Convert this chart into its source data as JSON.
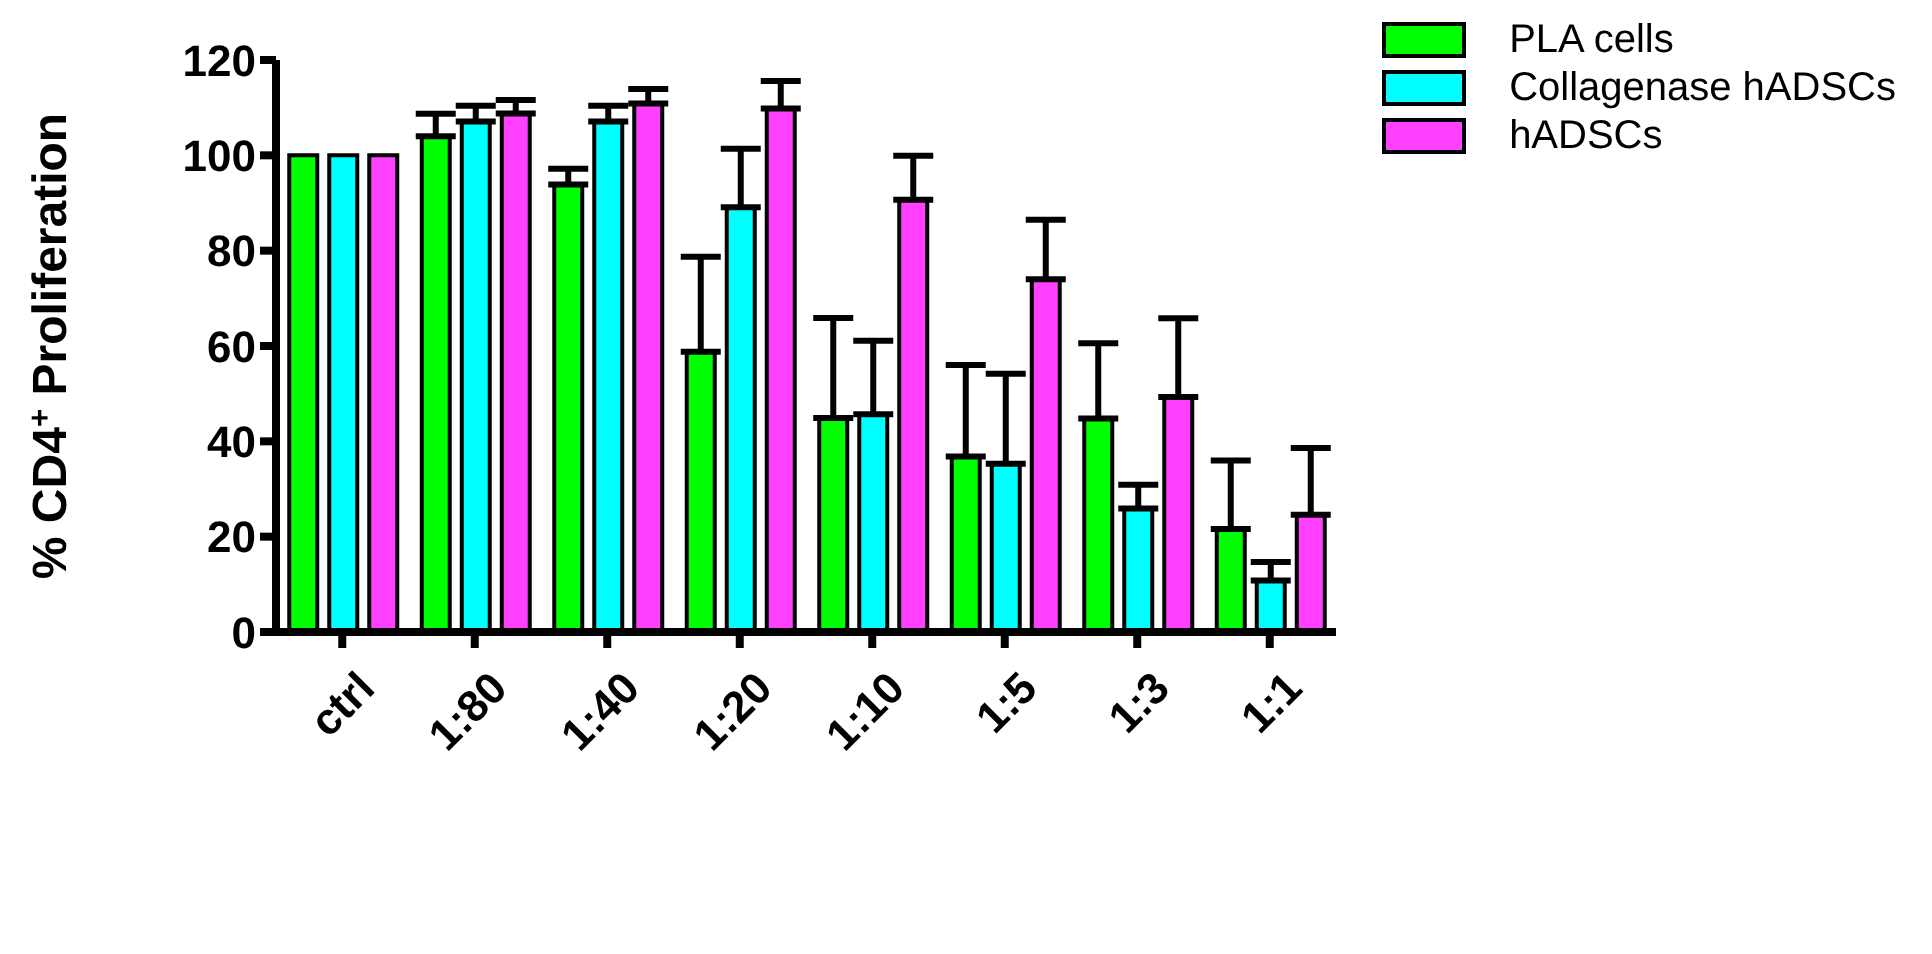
{
  "chart_data": {
    "type": "bar",
    "ylabel": "% CD4$^{+}$ Proliferation",
    "categories": [
      "ctrl",
      "1:80",
      "1:40",
      "1:20",
      "1:10",
      "1:5",
      "1:3",
      "1:1"
    ],
    "series": [
      {
        "name": "PLA cells",
        "color": "#00ff00",
        "values": [
          100,
          104,
          93.9,
          58.8,
          44.9,
          36.8,
          44.8,
          21.6
        ],
        "errors": [
          null,
          [
            104,
            108.7
          ],
          [
            93.9,
            97.2
          ],
          [
            58.8,
            78.7
          ],
          [
            44.9,
            65.9
          ],
          [
            36.8,
            56
          ],
          [
            44.8,
            60.6
          ],
          [
            21.6,
            36
          ]
        ]
      },
      {
        "name": "Collagenase hADSCs",
        "color": "#00ffff",
        "values": [
          100,
          107.1,
          107.1,
          89.1,
          45.7,
          35.3,
          25.9,
          10.8
        ],
        "errors": [
          null,
          [
            107.1,
            110.4
          ],
          [
            107.1,
            110.4
          ],
          [
            89.1,
            101.4
          ],
          [
            45.7,
            61.1
          ],
          [
            35.3,
            54.2
          ],
          [
            25.9,
            30.9
          ],
          [
            10.8,
            14.7
          ]
        ]
      },
      {
        "name": "hADSCs",
        "color": "#ff40ff",
        "values": [
          100,
          108.8,
          110.9,
          109.8,
          90.7,
          74,
          49.3,
          24.6
        ],
        "errors": [
          null,
          [
            108.8,
            111.6
          ],
          [
            110.9,
            113.9
          ],
          [
            109.8,
            115.6
          ],
          [
            90.7,
            99.9
          ],
          [
            74,
            86.5
          ],
          [
            49.3,
            65.8
          ],
          [
            24.6,
            38.6
          ]
        ]
      }
    ],
    "ylim": [
      0,
      120
    ],
    "yticks": [
      0,
      20,
      40,
      60,
      80,
      100,
      120
    ],
    "grid": false,
    "legend": "top right"
  }
}
